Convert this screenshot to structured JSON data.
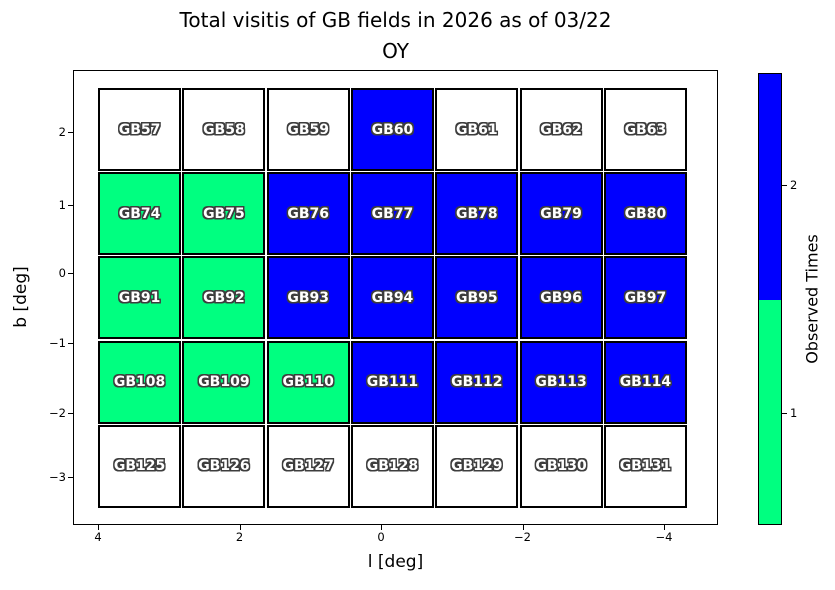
{
  "figure": {
    "title_line1": "Total visitis of GB fields in 2026 as of 03/22",
    "title_line2": "OY",
    "xlabel": "l [deg]",
    "ylabel": "b [deg]"
  },
  "colorbar": {
    "label": "Observed Times",
    "tick_labels": [
      "2",
      "1"
    ]
  },
  "colors": {
    "observed_once": "#00FF80",
    "observed_twice": "#0000FF",
    "unobserved": "#FFFFFF",
    "cell_border": "#000000",
    "label_fill": "#FFFFFF",
    "label_outline": "#3d3d3d"
  },
  "chart_data": {
    "type": "heatmap",
    "title": "Total visitis of GB fields in 2026 as of 03/22 OY",
    "xlabel": "l [deg]",
    "ylabel": "b [deg]",
    "x_tick_labels": [
      "4",
      "2",
      "0",
      "−2",
      "−4"
    ],
    "y_tick_labels": [
      "2",
      "1",
      "0",
      "−1",
      "−2",
      "−3"
    ],
    "x_axis_inverted": true,
    "grid_shape": [
      5,
      7
    ],
    "colorbar_label": "Observed Times",
    "colorbar_tick_values": [
      2,
      1
    ],
    "value_colors": {
      "0": "#FFFFFF",
      "1": "#00FF80",
      "2": "#0000FF"
    },
    "fields": [
      {
        "name": "GB57",
        "observed_times": 0
      },
      {
        "name": "GB58",
        "observed_times": 0
      },
      {
        "name": "GB59",
        "observed_times": 0
      },
      {
        "name": "GB60",
        "observed_times": 2
      },
      {
        "name": "GB61",
        "observed_times": 0
      },
      {
        "name": "GB62",
        "observed_times": 0
      },
      {
        "name": "GB63",
        "observed_times": 0
      },
      {
        "name": "GB74",
        "observed_times": 1
      },
      {
        "name": "GB75",
        "observed_times": 1
      },
      {
        "name": "GB76",
        "observed_times": 2
      },
      {
        "name": "GB77",
        "observed_times": 2
      },
      {
        "name": "GB78",
        "observed_times": 2
      },
      {
        "name": "GB79",
        "observed_times": 2
      },
      {
        "name": "GB80",
        "observed_times": 2
      },
      {
        "name": "GB91",
        "observed_times": 1
      },
      {
        "name": "GB92",
        "observed_times": 1
      },
      {
        "name": "GB93",
        "observed_times": 2
      },
      {
        "name": "GB94",
        "observed_times": 2
      },
      {
        "name": "GB95",
        "observed_times": 2
      },
      {
        "name": "GB96",
        "observed_times": 2
      },
      {
        "name": "GB97",
        "observed_times": 2
      },
      {
        "name": "GB108",
        "observed_times": 1
      },
      {
        "name": "GB109",
        "observed_times": 1
      },
      {
        "name": "GB110",
        "observed_times": 1
      },
      {
        "name": "GB111",
        "observed_times": 2
      },
      {
        "name": "GB112",
        "observed_times": 2
      },
      {
        "name": "GB113",
        "observed_times": 2
      },
      {
        "name": "GB114",
        "observed_times": 2
      },
      {
        "name": "GB125",
        "observed_times": 0
      },
      {
        "name": "GB126",
        "observed_times": 0
      },
      {
        "name": "GB127",
        "observed_times": 0
      },
      {
        "name": "GB128",
        "observed_times": 0
      },
      {
        "name": "GB129",
        "observed_times": 0
      },
      {
        "name": "GB130",
        "observed_times": 0
      },
      {
        "name": "GB131",
        "observed_times": 0
      }
    ]
  }
}
